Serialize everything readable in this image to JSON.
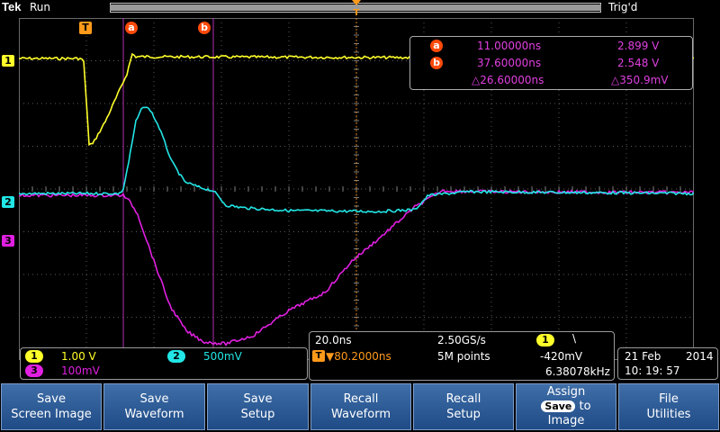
{
  "header": {
    "brand": "Tek",
    "run_state": "Run",
    "trigger_state": "Trig'd"
  },
  "markers": {
    "trigger_marker": "T",
    "cursor_a": "a",
    "cursor_b": "b",
    "channel_1": "1",
    "channel_2": "2",
    "channel_3": "3"
  },
  "cursor_readout": {
    "a_time": "11.00000ns",
    "a_volt": "2.899 V",
    "b_time": "37.60000ns",
    "b_volt": "2.548 V",
    "delta_time": "△26.60000ns",
    "delta_volt": "△350.9mV"
  },
  "channels": {
    "ch1_num": "1",
    "ch1_scale": "1.00 V",
    "ch2_num": "2",
    "ch2_scale": "500mV",
    "ch3_num": "3",
    "ch3_scale": "100mV"
  },
  "timebase": {
    "scale": "20.0ns",
    "sample_rate": "2.50GS/s",
    "trigger_pos": "▼80.2000ns",
    "record_length": "5M points",
    "trig_source": "1",
    "trig_slope": "\\",
    "trig_level": "-420mV",
    "trig_freq": "6.38078kHz"
  },
  "datetime": {
    "date": "21 Feb",
    "year": "2014",
    "time": "10: 19: 57"
  },
  "softkeys": [
    {
      "line1": "Save",
      "line2": "Screen Image"
    },
    {
      "line1": "Save",
      "line2": "Waveform"
    },
    {
      "line1": "Save",
      "line2": "Setup"
    },
    {
      "line1": "Recall",
      "line2": "Waveform"
    },
    {
      "line1": "Recall",
      "line2": "Setup"
    },
    {
      "line1": "Assign",
      "chip": "Save",
      "to": "to",
      "line3": "Image"
    },
    {
      "line1": "File",
      "line2": "Utilities"
    }
  ],
  "colors": {
    "ch1": "#ffff2a",
    "ch2": "#22e6e6",
    "ch3": "#e020e0",
    "cursor": "#ff4a0a",
    "trigger": "#ff9a1a"
  }
}
